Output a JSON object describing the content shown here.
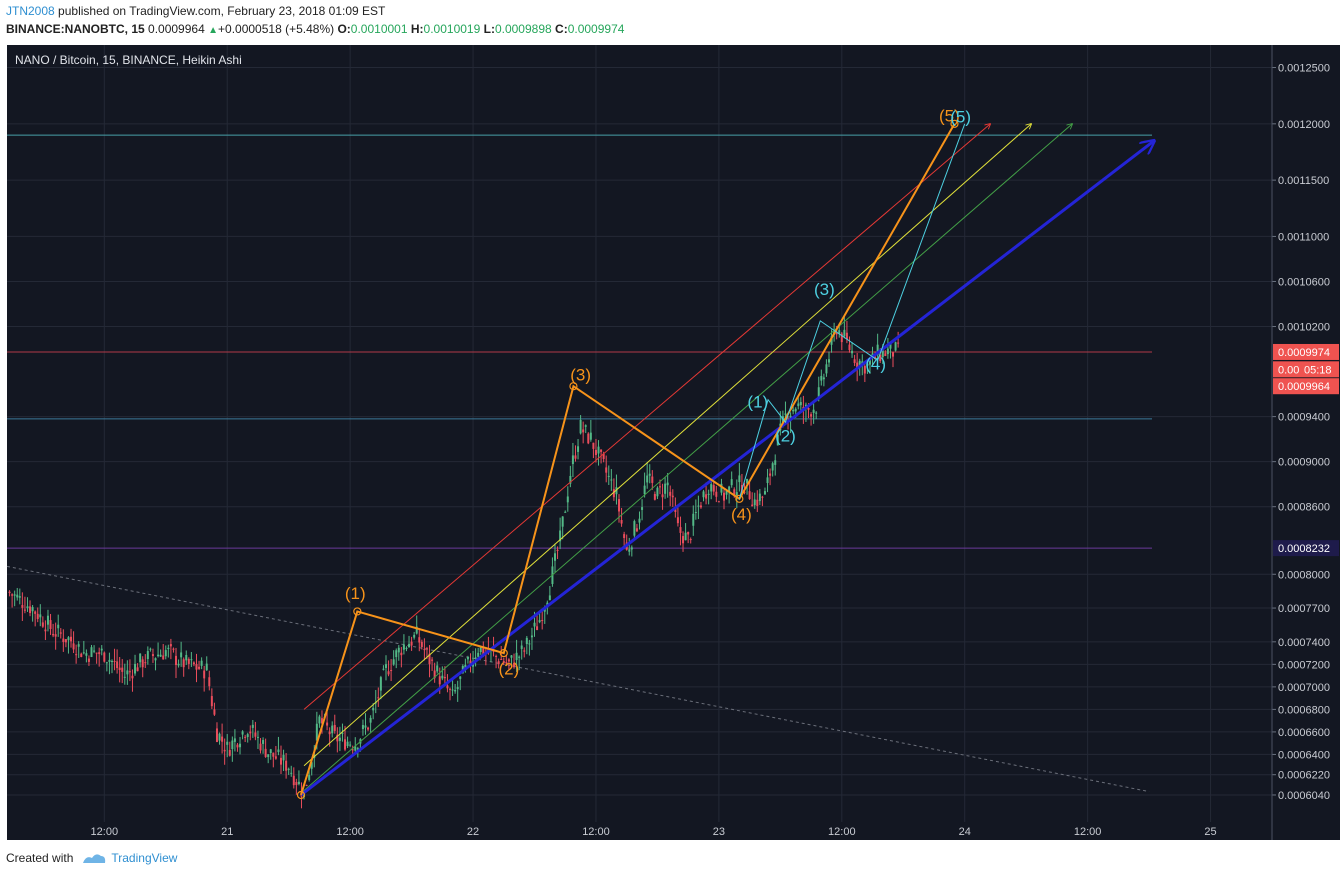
{
  "header": {
    "author": "JTN2008",
    "published_text": "published on TradingView.com, February 23, 2018 01:09 EST",
    "symbol": "BINANCE:NANOBTC, 15",
    "price": "0.0009964",
    "change": "+0.0000518 (+5.48%)",
    "o_label": "O:",
    "o_value": "0.0010001",
    "h_label": "H:",
    "h_value": "0.0010019",
    "l_label": "L:",
    "l_value": "0.0009898",
    "c_label": "C:",
    "c_value": "0.0009974"
  },
  "footer": {
    "created_with": "Created with",
    "brand": "TradingView"
  },
  "colors": {
    "background": "#131722",
    "bull": "#53b987",
    "bear": "#eb4d5c",
    "orange": "#f7931a",
    "cyan": "#4dd0e1",
    "blue": "#2424d6",
    "red_line": "#e53935",
    "yellow_line": "#e0e03a",
    "green_line": "#43a047"
  },
  "chart_data": {
    "type": "candlestick",
    "title": "NANO / Bitcoin, 15, BINANCE, Heikin Ashi",
    "x_tick_labels": [
      "12:00",
      "21",
      "12:00",
      "22",
      "12:00",
      "23",
      "12:00",
      "24",
      "12:00",
      "25"
    ],
    "x_tick_hours": [
      -12,
      0,
      12,
      24,
      36,
      48,
      60,
      72,
      84,
      96
    ],
    "x_range_hours": [
      -21.5,
      102
    ],
    "y_range": [
      0.00058,
      0.00127
    ],
    "y_tick_labels": [
      "0.0012500",
      "0.0012000",
      "0.0011500",
      "0.0011000",
      "0.0010600",
      "0.0010200",
      "0.0009400",
      "0.0009000",
      "0.0008600",
      "0.0008000",
      "0.0007700",
      "0.0007400",
      "0.0007200",
      "0.0007000",
      "0.0006800",
      "0.0006600",
      "0.0006400",
      "0.0006220",
      "0.0006040"
    ],
    "y_tick_values": [
      0.00125,
      0.0012,
      0.00115,
      0.0011,
      0.00106,
      0.00102,
      0.00094,
      0.0009,
      0.00086,
      0.0008,
      0.00077,
      0.00074,
      0.00072,
      0.0007,
      0.00068,
      0.00066,
      0.00064,
      0.000622,
      0.000604
    ],
    "price_path": [
      [
        -21.5,
        0.000785
      ],
      [
        -19,
        0.00077
      ],
      [
        -17,
        0.00075
      ],
      [
        -15,
        0.00074
      ],
      [
        -14,
        0.00073
      ],
      [
        -12,
        0.00073
      ],
      [
        -10,
        0.00071
      ],
      [
        -8,
        0.000725
      ],
      [
        -6,
        0.000732
      ],
      [
        -4,
        0.00072
      ],
      [
        -2,
        0.000715
      ],
      [
        -1,
        0.00066
      ],
      [
        0,
        0.000645
      ],
      [
        2,
        0.000665
      ],
      [
        4,
        0.000642
      ],
      [
        6,
        0.00063
      ],
      [
        7.5,
        0.000605
      ],
      [
        9,
        0.00067
      ],
      [
        10.5,
        0.000655
      ],
      [
        12.5,
        0.00065
      ],
      [
        14,
        0.00067
      ],
      [
        15.5,
        0.000715
      ],
      [
        17,
        0.000735
      ],
      [
        18.5,
        0.000745
      ],
      [
        20,
        0.00072
      ],
      [
        22,
        0.00069
      ],
      [
        23,
        0.00071
      ],
      [
        24.5,
        0.000735
      ],
      [
        26,
        0.000728
      ],
      [
        27.5,
        0.00072
      ],
      [
        29,
        0.000732
      ],
      [
        30.5,
        0.00076
      ],
      [
        31.5,
        0.00079
      ],
      [
        32.5,
        0.00083
      ],
      [
        33.5,
        0.00089
      ],
      [
        34.5,
        0.00093
      ],
      [
        35.5,
        0.00092
      ],
      [
        36.5,
        0.0009
      ],
      [
        38,
        0.00087
      ],
      [
        39,
        0.00082
      ],
      [
        40,
        0.000845
      ],
      [
        41,
        0.000885
      ],
      [
        42,
        0.00087
      ],
      [
        43,
        0.00088
      ],
      [
        44,
        0.00084
      ],
      [
        45,
        0.00083
      ],
      [
        46,
        0.00086
      ],
      [
        47,
        0.00088
      ],
      [
        48.5,
        0.00087
      ],
      [
        49.5,
        0.000878
      ],
      [
        50.5,
        0.00088
      ],
      [
        51.5,
        0.000865
      ],
      [
        52.5,
        0.00087
      ],
      [
        53.5,
        0.00091
      ],
      [
        54.5,
        0.00094
      ],
      [
        55.5,
        0.00095
      ],
      [
        56.5,
        0.000945
      ],
      [
        57.5,
        0.00095
      ],
      [
        58.5,
        0.000985
      ],
      [
        59.5,
        0.00102
      ],
      [
        60.5,
        0.001005
      ],
      [
        61.5,
        0.00099
      ],
      [
        62.5,
        0.000985
      ],
      [
        63.5,
        0.000995
      ],
      [
        64.5,
        0.000998
      ],
      [
        65.5,
        0.0009974
      ]
    ],
    "horizontal_lines": [
      {
        "y": 0.00119,
        "color": "#48a1a8"
      },
      {
        "y": 0.0009974,
        "color": "#b03a48"
      },
      {
        "y": 0.000938,
        "color": "#3c7a9a"
      },
      {
        "y": 0.0008232,
        "color": "#6a3a9a"
      }
    ],
    "axis_price_labels": [
      {
        "text": "0.0009974",
        "y": 0.0009974,
        "bg": "#ef5350"
      },
      {
        "text": "05:18",
        "y": 0.000982,
        "bg": "#ef5350",
        "prefix": "0.00"
      },
      {
        "text": "0.0009964",
        "y": 0.000967,
        "bg": "#ef5350"
      },
      {
        "text": "0.0008232",
        "y": 0.0008232,
        "bg": "#1e1b4b"
      }
    ],
    "wave_labels": [
      {
        "text": "(1)",
        "x": 12.5,
        "y": 0.000778,
        "color": "#f7931a"
      },
      {
        "text": "(2)",
        "x": 27.5,
        "y": 0.000711,
        "color": "#f7931a"
      },
      {
        "text": "(3)",
        "x": 34.5,
        "y": 0.000972,
        "color": "#f7931a"
      },
      {
        "text": "(4)",
        "x": 50.2,
        "y": 0.000848,
        "color": "#f7931a"
      },
      {
        "text": "(5)",
        "x": 70.5,
        "y": 0.001202,
        "color": "#f7931a"
      },
      {
        "text": "(1)",
        "x": 51.8,
        "y": 0.000948,
        "color": "#4dd0e1"
      },
      {
        "text": "(2)",
        "x": 54.5,
        "y": 0.000918,
        "color": "#4dd0e1"
      },
      {
        "text": "(3)",
        "x": 58.3,
        "y": 0.001048,
        "color": "#4dd0e1"
      },
      {
        "text": "(4)",
        "x": 63.3,
        "y": 0.000982,
        "color": "#4dd0e1"
      },
      {
        "text": "(5)",
        "x": 71.6,
        "y": 0.001201,
        "color": "#4dd0e1"
      }
    ],
    "orange_wave": [
      [
        7.2,
        0.000604
      ],
      [
        12.7,
        0.000767
      ],
      [
        27,
        0.00073
      ],
      [
        33.8,
        0.000967
      ],
      [
        50,
        0.000867
      ],
      [
        71,
        0.0012
      ]
    ],
    "cyan_wave": [
      [
        50,
        0.000867
      ],
      [
        52.8,
        0.000955
      ],
      [
        54.5,
        0.000935
      ],
      [
        57.9,
        0.001025
      ],
      [
        63.5,
        0.00099
      ],
      [
        72,
        0.0012
      ]
    ],
    "blue_trend": [
      [
        7.2,
        0.000604
      ],
      [
        90.5,
        0.001185
      ]
    ],
    "gray_trend": [
      [
        -21.5,
        0.000807
      ],
      [
        90,
        0.000607
      ]
    ],
    "channel_lines": [
      {
        "color": "#e53935",
        "points": [
          [
            7.5,
            0.00068
          ],
          [
            74.5,
            0.0012
          ]
        ]
      },
      {
        "color": "#e0e03a",
        "points": [
          [
            7.5,
            0.00063
          ],
          [
            78.5,
            0.0012
          ]
        ]
      },
      {
        "color": "#43a047",
        "points": [
          [
            7.5,
            0.000608
          ],
          [
            82.5,
            0.0012
          ]
        ]
      }
    ]
  }
}
